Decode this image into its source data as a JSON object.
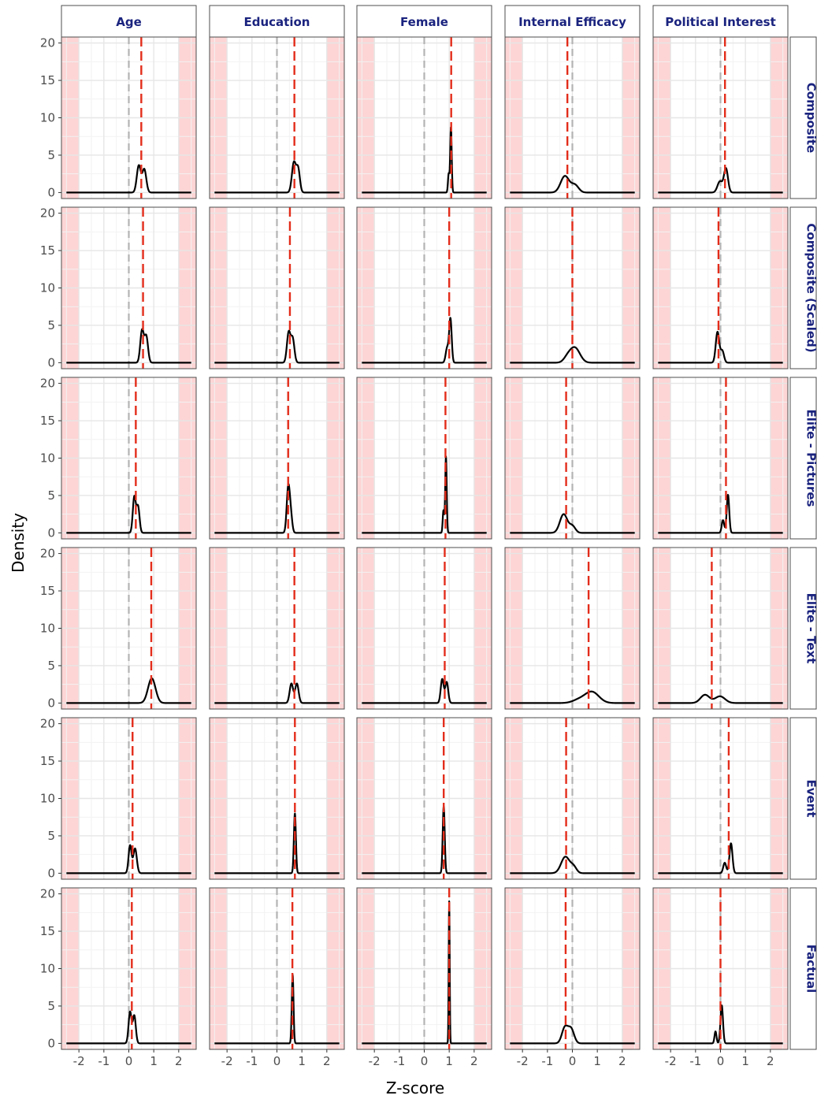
{
  "chart_data": {
    "type": "line",
    "xlabel": "Z-score",
    "ylabel": "Density",
    "xlim": [
      -2.7,
      2.7
    ],
    "ylim": [
      -0.8,
      20.8
    ],
    "x_ticks": [
      -2,
      -1,
      0,
      1,
      2
    ],
    "x_tick_labels": [
      "-2",
      "-1",
      "0",
      "1",
      "2"
    ],
    "y_ticks": [
      0,
      5,
      10,
      15,
      20
    ],
    "y_tick_labels": [
      "0",
      "5",
      "10",
      "15",
      "20"
    ],
    "shaded_regions": [
      [
        -2.7,
        -2
      ],
      [
        2,
        2.7
      ]
    ],
    "reference_line_x": 0,
    "grid": true,
    "columns": [
      "Age",
      "Education",
      "Female",
      "Internal Efficacy",
      "Political Interest"
    ],
    "rows": [
      "Composite",
      "Composite (Scaled)",
      "Elite - Pictures",
      "Elite - Text",
      "Event",
      "Factual"
    ],
    "panels": [
      [
        {
          "mean": 0.5,
          "peaks": [
            {
              "m": 0.4,
              "s": 0.08,
              "h": 3.6
            },
            {
              "m": 0.62,
              "s": 0.08,
              "h": 3.1
            }
          ]
        },
        {
          "mean": 0.7,
          "peaks": [
            {
              "m": 0.68,
              "s": 0.08,
              "h": 4.0
            },
            {
              "m": 0.85,
              "s": 0.07,
              "h": 3.1
            }
          ]
        },
        {
          "mean": 1.08,
          "peaks": [
            {
              "m": 1.07,
              "s": 0.03,
              "h": 8.8
            },
            {
              "m": 0.98,
              "s": 0.03,
              "h": 2.5
            }
          ]
        },
        {
          "mean": -0.2,
          "peaks": [
            {
              "m": -0.3,
              "s": 0.17,
              "h": 2.2
            },
            {
              "m": 0.1,
              "s": 0.15,
              "h": 1.0
            }
          ]
        },
        {
          "mean": 0.18,
          "peaks": [
            {
              "m": 0.22,
              "s": 0.08,
              "h": 3.2
            },
            {
              "m": -0.02,
              "s": 0.1,
              "h": 1.5
            }
          ]
        }
      ],
      [
        {
          "mean": 0.57,
          "peaks": [
            {
              "m": 0.53,
              "s": 0.07,
              "h": 4.3
            },
            {
              "m": 0.7,
              "s": 0.07,
              "h": 3.5
            }
          ]
        },
        {
          "mean": 0.52,
          "peaks": [
            {
              "m": 0.47,
              "s": 0.07,
              "h": 4.0
            },
            {
              "m": 0.63,
              "s": 0.07,
              "h": 3.2
            }
          ]
        },
        {
          "mean": 1.0,
          "peaks": [
            {
              "m": 1.05,
              "s": 0.05,
              "h": 5.8
            },
            {
              "m": 0.92,
              "s": 0.06,
              "h": 2.0
            }
          ]
        },
        {
          "mean": 0.0,
          "peaks": [
            {
              "m": 0.1,
              "s": 0.2,
              "h": 2.0
            },
            {
              "m": -0.2,
              "s": 0.15,
              "h": 0.6
            }
          ]
        },
        {
          "mean": -0.08,
          "peaks": [
            {
              "m": -0.12,
              "s": 0.07,
              "h": 4.1
            },
            {
              "m": 0.07,
              "s": 0.07,
              "h": 1.6
            }
          ]
        }
      ],
      [
        {
          "mean": 0.28,
          "peaks": [
            {
              "m": 0.22,
              "s": 0.06,
              "h": 4.8
            },
            {
              "m": 0.37,
              "s": 0.06,
              "h": 3.5
            }
          ]
        },
        {
          "mean": 0.45,
          "peaks": [
            {
              "m": 0.45,
              "s": 0.06,
              "h": 5.8
            },
            {
              "m": 0.55,
              "s": 0.06,
              "h": 2.5
            }
          ]
        },
        {
          "mean": 0.85,
          "peaks": [
            {
              "m": 0.87,
              "s": 0.03,
              "h": 10.2
            },
            {
              "m": 0.77,
              "s": 0.03,
              "h": 3.0
            }
          ]
        },
        {
          "mean": -0.25,
          "peaks": [
            {
              "m": -0.35,
              "s": 0.15,
              "h": 2.5
            },
            {
              "m": 0.0,
              "s": 0.12,
              "h": 0.9
            }
          ]
        },
        {
          "mean": 0.22,
          "peaks": [
            {
              "m": 0.3,
              "s": 0.05,
              "h": 5.1
            },
            {
              "m": 0.1,
              "s": 0.05,
              "h": 1.7
            }
          ]
        }
      ],
      [
        {
          "mean": 0.9,
          "peaks": [
            {
              "m": 0.92,
              "s": 0.15,
              "h": 3.3
            }
          ]
        },
        {
          "mean": 0.7,
          "peaks": [
            {
              "m": 0.58,
              "s": 0.07,
              "h": 2.6
            },
            {
              "m": 0.8,
              "s": 0.07,
              "h": 2.6
            }
          ]
        },
        {
          "mean": 0.82,
          "peaks": [
            {
              "m": 0.72,
              "s": 0.06,
              "h": 3.2
            },
            {
              "m": 0.9,
              "s": 0.06,
              "h": 2.8
            }
          ]
        },
        {
          "mean": 0.65,
          "peaks": [
            {
              "m": 0.78,
              "s": 0.28,
              "h": 1.5
            },
            {
              "m": 0.25,
              "s": 0.25,
              "h": 0.4
            }
          ]
        },
        {
          "mean": -0.35,
          "peaks": [
            {
              "m": -0.62,
              "s": 0.18,
              "h": 1.1
            },
            {
              "m": -0.02,
              "s": 0.2,
              "h": 0.9
            }
          ]
        }
      ],
      [
        {
          "mean": 0.15,
          "peaks": [
            {
              "m": 0.05,
              "s": 0.06,
              "h": 3.7
            },
            {
              "m": 0.25,
              "s": 0.07,
              "h": 3.3
            }
          ]
        },
        {
          "mean": 0.72,
          "peaks": [
            {
              "m": 0.72,
              "s": 0.04,
              "h": 8.0
            }
          ]
        },
        {
          "mean": 0.78,
          "peaks": [
            {
              "m": 0.78,
              "s": 0.04,
              "h": 9.0
            }
          ]
        },
        {
          "mean": -0.25,
          "peaks": [
            {
              "m": -0.28,
              "s": 0.17,
              "h": 2.2
            },
            {
              "m": 0.05,
              "s": 0.12,
              "h": 0.8
            }
          ]
        },
        {
          "mean": 0.33,
          "peaks": [
            {
              "m": 0.42,
              "s": 0.06,
              "h": 4.0
            },
            {
              "m": 0.17,
              "s": 0.06,
              "h": 1.4
            }
          ]
        }
      ],
      [
        {
          "mean": 0.12,
          "peaks": [
            {
              "m": 0.05,
              "s": 0.06,
              "h": 4.2
            },
            {
              "m": 0.22,
              "s": 0.06,
              "h": 3.7
            }
          ]
        },
        {
          "mean": 0.62,
          "peaks": [
            {
              "m": 0.63,
              "s": 0.035,
              "h": 9.2
            }
          ]
        },
        {
          "mean": 1.0,
          "peaks": [
            {
              "m": 1.0,
              "s": 0.02,
              "h": 19.0
            }
          ]
        },
        {
          "mean": -0.27,
          "peaks": [
            {
              "m": -0.3,
              "s": 0.12,
              "h": 2.1
            },
            {
              "m": -0.05,
              "s": 0.12,
              "h": 1.9
            }
          ]
        },
        {
          "mean": 0.0,
          "peaks": [
            {
              "m": 0.05,
              "s": 0.05,
              "h": 5.1
            },
            {
              "m": -0.2,
              "s": 0.04,
              "h": 1.6
            }
          ]
        }
      ]
    ]
  },
  "colors": {
    "shade": "#fdd5d5",
    "grid_major": "#e6e6e6",
    "grid_minor": "#f2f2f2",
    "panel_border": "#4d4d4d",
    "strip_text": "#1a237e",
    "mean_line": "#e32d1b",
    "zero_line": "#b3b3b3",
    "density_line": "#000000"
  }
}
